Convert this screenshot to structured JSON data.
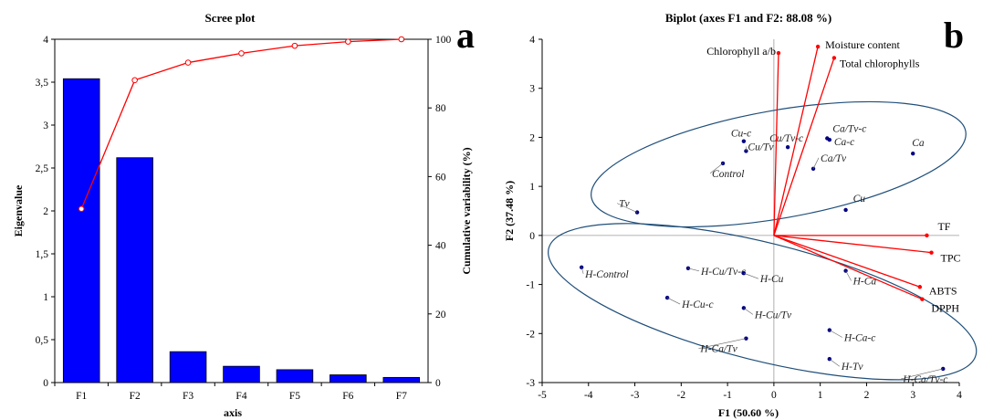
{
  "colors": {
    "bar": "#0000ff",
    "cumulative": "#ff0000",
    "arrow": "#ff0000",
    "points": "#000080",
    "ellipse": "#1f4e79"
  },
  "scree": {
    "panel_letter": "a",
    "chart_data": {
      "type": "bar",
      "title": "Scree plot",
      "xlabel": "axis",
      "ylabel": "Eigenvalue",
      "y2label": "Cumulative variability (%)",
      "categories": [
        "F1",
        "F2",
        "F3",
        "F4",
        "F5",
        "F6",
        "F7"
      ],
      "series": [
        {
          "values": [
            3.54,
            2.62,
            0.36,
            0.19,
            0.15,
            0.09,
            0.06
          ]
        },
        {
          "axis": "right",
          "type": "line",
          "values": [
            50.6,
            88.08,
            93.2,
            95.9,
            98.1,
            99.3,
            100
          ]
        }
      ],
      "ylim": [
        0,
        4
      ],
      "y2lim": [
        0,
        100
      ],
      "yticks": [
        "0",
        "0,5",
        "1",
        "1,5",
        "2",
        "2,5",
        "3",
        "3,5",
        "4"
      ],
      "y2ticks": [
        "0",
        "20",
        "40",
        "60",
        "80",
        "100"
      ]
    }
  },
  "biplot": {
    "panel_letter": "b",
    "chart_data": {
      "type": "scatter",
      "title": "Biplot (axes F1 and F2: 88.08 %)",
      "xlabel": "F1 (50.60 %)",
      "ylabel": "F2 (37.48 %)",
      "xlim": [
        -5,
        4
      ],
      "ylim": [
        -3,
        4
      ],
      "xticks": [
        "-5",
        "-4",
        "-3",
        "-2",
        "-1",
        "0",
        "1",
        "2",
        "3",
        "4"
      ],
      "yticks": [
        "-3",
        "-2",
        "-1",
        "0",
        "1",
        "2",
        "3",
        "4"
      ],
      "observations": [
        {
          "name": "Cu-c",
          "x": -0.65,
          "y": 1.92
        },
        {
          "name": "Cu/Tv",
          "x": -0.6,
          "y": 1.72
        },
        {
          "name": "Control",
          "x": -1.1,
          "y": 1.47
        },
        {
          "name": "Cu/Tv-c",
          "x": 0.3,
          "y": 1.8
        },
        {
          "name": "Ca/Tv-c",
          "x": 1.15,
          "y": 1.98
        },
        {
          "name": "Ca-c",
          "x": 1.2,
          "y": 1.95
        },
        {
          "name": "Ca/Tv",
          "x": 0.85,
          "y": 1.36
        },
        {
          "name": "Ca",
          "x": 3.0,
          "y": 1.67
        },
        {
          "name": "Cu",
          "x": 1.55,
          "y": 0.52
        },
        {
          "name": "Tv",
          "x": -2.95,
          "y": 0.47
        },
        {
          "name": "H-Control",
          "x": -4.15,
          "y": -0.65
        },
        {
          "name": "H-Cu/Tv-c",
          "x": -1.85,
          "y": -0.67
        },
        {
          "name": "H-Cu",
          "x": -0.65,
          "y": -0.77
        },
        {
          "name": "H-Ca",
          "x": 1.55,
          "y": -0.72
        },
        {
          "name": "H-Cu-c",
          "x": -2.3,
          "y": -1.27
        },
        {
          "name": "H-Cu/Tv",
          "x": -0.65,
          "y": -1.48
        },
        {
          "name": "H-Ca-c",
          "x": 1.2,
          "y": -1.93
        },
        {
          "name": "H-Ca/Tv",
          "x": -0.6,
          "y": -2.1
        },
        {
          "name": "H-Tv",
          "x": 1.2,
          "y": -2.52
        },
        {
          "name": "H-Ca/Tv-c",
          "x": 3.65,
          "y": -2.72
        }
      ],
      "variables": [
        {
          "name": "Chlorophyll a/b",
          "x": 0.1,
          "y": 3.72
        },
        {
          "name": "Moisture content",
          "x": 0.95,
          "y": 3.85
        },
        {
          "name": "Total chlorophylls",
          "x": 1.3,
          "y": 3.62
        },
        {
          "name": "TF",
          "x": 3.3,
          "y": 0.0
        },
        {
          "name": "TPC",
          "x": 3.4,
          "y": -0.35
        },
        {
          "name": "ABTS",
          "x": 3.15,
          "y": -1.05
        },
        {
          "name": "DPPH",
          "x": 3.2,
          "y": -1.3
        }
      ]
    }
  }
}
